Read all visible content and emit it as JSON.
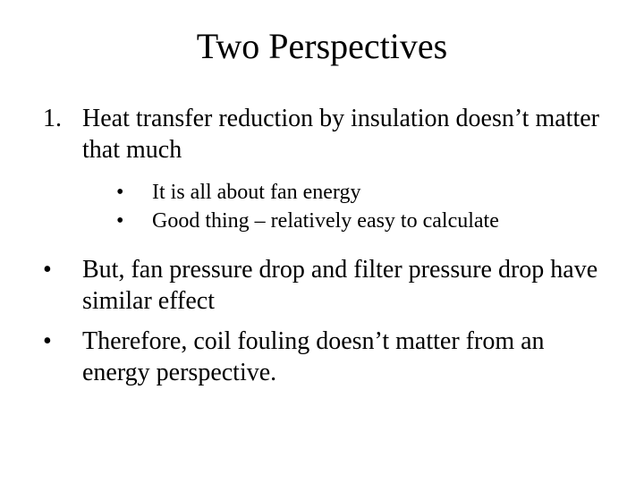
{
  "background_color": "#ffffff",
  "text_color": "#000000",
  "font_family": "Times New Roman",
  "title": {
    "text": "Two Perspectives",
    "fontsize": 40,
    "align": "center"
  },
  "numbered_item": {
    "marker": "1.",
    "text": "Heat transfer reduction by insulation doesn’t matter that much",
    "fontsize": 28
  },
  "sub_bullets": {
    "fontsize": 24,
    "marker": "•",
    "items": [
      "It is all about fan energy",
      "Good thing – relatively easy to calculate"
    ]
  },
  "main_bullets": {
    "fontsize": 28,
    "marker": "•",
    "items": [
      "But, fan pressure drop and filter pressure drop have similar effect",
      "Therefore, coil fouling doesn’t matter from an energy perspective."
    ]
  }
}
